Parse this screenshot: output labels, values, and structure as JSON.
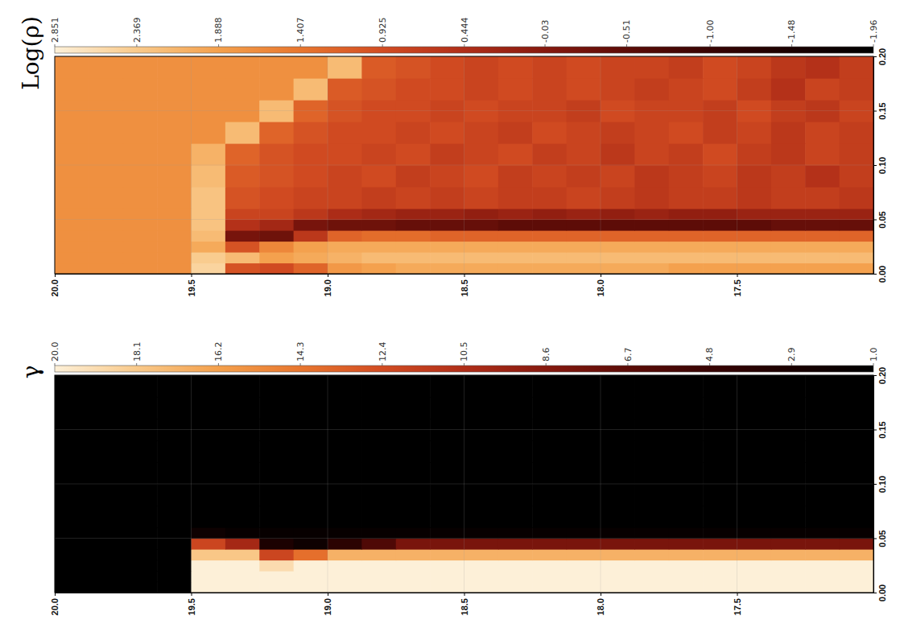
{
  "chart_data": [
    {
      "type": "heatmap",
      "title": "Log(ρ)",
      "x_edges": [
        20.0,
        19.875,
        19.75,
        19.625,
        19.5,
        19.375,
        19.25,
        19.125,
        19.0,
        18.875,
        18.75,
        18.625,
        18.5,
        18.375,
        18.25,
        18.125,
        18.0,
        17.875,
        17.75,
        17.625,
        17.5,
        17.375,
        17.25,
        17.125,
        17.0
      ],
      "y_edges": [
        0,
        0.01,
        0.02,
        0.03,
        0.04,
        0.05,
        0.06,
        0.08,
        0.1,
        0.12,
        0.14,
        0.16,
        0.18,
        0.2
      ],
      "values": [
        [
          1.7,
          1.7,
          1.7,
          1.7,
          2.5,
          1.0,
          0.9,
          1.2,
          1.8,
          1.9,
          2.0,
          2.0,
          2.0,
          2.0,
          2.0,
          2.0,
          2.0,
          2.0,
          1.9,
          1.9,
          1.9,
          1.9,
          1.9,
          1.9
        ],
        [
          1.7,
          1.7,
          1.7,
          1.7,
          2.4,
          2.2,
          1.9,
          2.0,
          2.1,
          2.2,
          2.2,
          2.2,
          2.2,
          2.2,
          2.2,
          2.2,
          2.2,
          2.2,
          2.2,
          2.2,
          2.2,
          2.2,
          2.2,
          2.2
        ],
        [
          1.7,
          1.7,
          1.7,
          1.7,
          2.0,
          1.0,
          1.6,
          1.9,
          2.0,
          2.0,
          2.0,
          2.0,
          2.0,
          2.0,
          2.0,
          2.0,
          2.0,
          2.0,
          2.0,
          2.0,
          2.0,
          2.0,
          2.0,
          2.0
        ],
        [
          1.7,
          1.7,
          1.7,
          1.7,
          2.2,
          -0.2,
          -0.3,
          0.6,
          1.2,
          1.3,
          1.3,
          1.2,
          1.2,
          1.2,
          1.2,
          1.2,
          1.2,
          1.2,
          1.2,
          1.2,
          1.2,
          1.2,
          1.2,
          1.2
        ],
        [
          1.7,
          1.7,
          1.7,
          1.7,
          2.3,
          0.5,
          0.3,
          -0.2,
          -0.3,
          -0.3,
          -0.4,
          -0.4,
          -0.4,
          -0.5,
          -0.5,
          -0.5,
          -0.5,
          -0.5,
          -0.5,
          -0.5,
          -0.5,
          -0.4,
          -0.4,
          -0.4
        ],
        [
          1.7,
          1.7,
          1.7,
          1.7,
          2.3,
          0.8,
          0.8,
          0.6,
          0.4,
          0.3,
          0.2,
          0.2,
          0.1,
          0.2,
          0.1,
          0.2,
          0.1,
          0.2,
          0.1,
          0.1,
          0.2,
          0.2,
          0.2,
          0.2
        ],
        [
          1.7,
          1.7,
          1.7,
          1.7,
          2.3,
          1.0,
          0.9,
          0.8,
          0.8,
          0.7,
          0.8,
          0.7,
          0.8,
          0.7,
          0.7,
          0.8,
          0.7,
          0.6,
          0.7,
          0.7,
          0.6,
          0.7,
          0.7,
          0.6
        ],
        [
          1.7,
          1.7,
          1.7,
          1.7,
          2.2,
          1.1,
          1.0,
          0.9,
          0.8,
          0.9,
          0.7,
          0.8,
          0.9,
          0.7,
          0.8,
          0.7,
          0.8,
          0.6,
          0.7,
          0.8,
          0.6,
          0.7,
          0.5,
          0.7
        ],
        [
          1.7,
          1.7,
          1.7,
          1.7,
          2.1,
          1.2,
          1.0,
          0.9,
          0.9,
          0.8,
          0.9,
          0.7,
          0.8,
          0.9,
          0.7,
          0.8,
          0.6,
          0.8,
          0.7,
          0.9,
          0.7,
          0.6,
          0.8,
          0.7
        ],
        [
          1.7,
          1.7,
          1.7,
          1.7,
          1.7,
          2.2,
          1.2,
          1.0,
          0.9,
          0.9,
          0.8,
          0.9,
          0.8,
          0.7,
          0.9,
          0.8,
          0.7,
          0.8,
          0.9,
          0.7,
          0.8,
          0.6,
          0.8,
          0.7
        ],
        [
          1.7,
          1.7,
          1.7,
          1.7,
          1.7,
          1.7,
          2.2,
          1.2,
          1.0,
          0.9,
          0.9,
          0.8,
          0.9,
          0.8,
          0.8,
          0.7,
          0.9,
          0.8,
          0.8,
          0.7,
          0.9,
          0.7,
          0.6,
          0.8
        ],
        [
          1.7,
          1.7,
          1.7,
          1.7,
          1.7,
          1.7,
          1.7,
          2.2,
          1.1,
          1.0,
          0.9,
          0.9,
          0.8,
          0.9,
          0.8,
          0.9,
          0.8,
          0.7,
          0.8,
          0.9,
          0.7,
          0.5,
          0.8,
          0.7
        ],
        [
          1.7,
          1.7,
          1.7,
          1.7,
          1.7,
          1.7,
          1.7,
          1.7,
          2.2,
          1.1,
          1.0,
          0.9,
          0.8,
          0.9,
          0.8,
          0.9,
          0.8,
          0.8,
          0.7,
          0.9,
          0.8,
          0.6,
          0.5,
          0.7
        ]
      ],
      "xlim": [
        20.0,
        17.0
      ],
      "xticks": [
        {
          "value": 20,
          "label": "20.0"
        },
        19.5,
        {
          "value": 19,
          "label": "19.0"
        },
        18.5,
        {
          "value": 18,
          "label": "18.0"
        },
        17.5
      ],
      "ylim": [
        0,
        0.2
      ],
      "yticks": [
        {
          "value": 0,
          "label": "0.00"
        },
        0.05,
        {
          "value": 0.1,
          "label": "0.10"
        },
        0.15,
        {
          "value": 0.2,
          "label": "0.20"
        }
      ],
      "colorbar": {
        "range": [
          2.851,
          -1.96
        ],
        "ticks": [
          2.851,
          2.369,
          1.888,
          1.407,
          0.925,
          0.444,
          -0.03,
          -0.51,
          {
            "value": -1,
            "label": "-1.00"
          },
          -1.48,
          -1.96
        ]
      },
      "grid": true
    },
    {
      "type": "heatmap",
      "title": "γ",
      "x_edges": [
        20.0,
        19.875,
        19.75,
        19.625,
        19.5,
        19.375,
        19.25,
        19.125,
        19.0,
        18.875,
        18.75,
        18.625,
        18.5,
        18.375,
        18.25,
        18.125,
        18.0,
        17.875,
        17.75,
        17.625,
        17.5,
        17.375,
        17.25,
        17.125,
        17.0
      ],
      "y_edges": [
        0,
        0.01,
        0.02,
        0.03,
        0.04,
        0.05,
        0.06,
        0.08,
        0.1,
        0.12,
        0.14,
        0.16,
        0.18,
        0.2
      ],
      "values": [
        [
          1,
          1,
          1,
          1,
          20,
          20,
          20,
          20,
          20,
          20,
          20,
          20,
          20,
          20,
          20,
          20,
          20,
          20,
          20,
          20,
          20,
          20,
          20,
          20
        ],
        [
          1,
          1,
          1,
          1,
          20,
          20,
          20,
          20,
          20,
          20,
          20,
          20,
          20,
          20,
          20,
          20,
          20,
          20,
          20,
          20,
          20,
          20,
          20,
          20
        ],
        [
          1,
          1,
          1,
          1,
          20,
          20,
          19,
          20,
          20,
          20,
          20,
          20,
          20,
          20,
          20,
          20,
          20,
          20,
          20,
          20,
          20,
          20,
          20,
          20
        ],
        [
          1,
          1,
          1,
          1,
          18,
          18,
          12,
          14,
          17,
          17,
          17,
          17,
          17,
          17,
          17,
          17,
          17,
          17,
          17,
          17,
          17,
          17,
          17,
          17
        ],
        [
          1,
          1,
          1,
          1,
          12,
          10,
          3,
          2,
          4,
          6,
          8,
          8,
          8,
          8,
          8,
          8,
          8,
          8,
          8,
          8,
          8,
          8,
          8,
          8
        ],
        [
          1,
          1,
          1,
          1,
          2,
          1.5,
          1.5,
          1.5,
          1.5,
          1.5,
          1.5,
          1.5,
          1.5,
          1.5,
          1.5,
          1.5,
          1.5,
          1.5,
          1.5,
          1.5,
          1.5,
          1.5,
          1.5,
          1.5
        ],
        [
          1,
          1,
          1,
          1,
          1,
          1,
          1,
          1,
          1,
          1,
          1,
          1,
          1,
          1,
          1,
          1,
          1,
          1,
          1,
          1,
          1,
          1,
          1,
          1
        ],
        [
          1,
          1,
          1,
          1,
          1,
          1,
          1,
          1,
          1,
          1,
          1,
          1,
          1,
          1,
          1,
          1,
          1,
          1,
          1,
          1,
          1,
          1,
          1,
          1
        ],
        [
          1,
          1,
          1,
          1,
          1,
          1,
          1,
          1,
          1,
          1,
          1,
          1,
          1,
          1,
          1,
          1,
          1,
          1,
          1,
          1,
          1,
          1,
          1,
          1
        ],
        [
          1,
          1,
          1,
          1,
          1,
          1,
          1,
          1,
          1,
          1,
          1,
          1,
          1,
          1,
          1,
          1,
          1,
          1,
          1,
          1,
          1,
          1,
          1,
          1
        ],
        [
          1,
          1,
          1,
          1,
          1,
          1,
          1,
          1,
          1,
          1,
          1,
          1,
          1,
          1,
          1,
          1,
          1,
          1,
          1,
          1,
          1,
          1,
          1,
          1
        ],
        [
          1,
          1,
          1,
          1,
          1,
          1,
          1,
          1,
          1,
          1,
          1,
          1,
          1,
          1,
          1,
          1,
          1,
          1,
          1,
          1,
          1,
          1,
          1,
          1
        ],
        [
          1,
          1,
          1,
          1,
          1,
          1,
          1,
          1,
          1,
          1,
          1,
          1,
          1,
          1,
          1,
          1,
          1,
          1,
          1,
          1,
          1,
          1,
          1,
          1
        ]
      ],
      "xlim": [
        20.0,
        17.0
      ],
      "xticks": [
        {
          "value": 20,
          "label": "20.0"
        },
        19.5,
        {
          "value": 19,
          "label": "19.0"
        },
        18.5,
        {
          "value": 18,
          "label": "18.0"
        },
        17.5
      ],
      "ylim": [
        0,
        0.2
      ],
      "yticks": [
        {
          "value": 0,
          "label": "0.00"
        },
        0.05,
        {
          "value": 0.1,
          "label": "0.10"
        },
        0.15,
        {
          "value": 0.2,
          "label": "0.20"
        }
      ],
      "colorbar": {
        "range": [
          20,
          1
        ],
        "ticks": [
          {
            "value": 20,
            "label": "20.0"
          },
          18.1,
          16.2,
          14.3,
          12.4,
          10.5,
          8.6,
          6.7,
          4.8,
          2.9,
          {
            "value": 1,
            "label": "1.0"
          }
        ]
      },
      "grid": true
    }
  ]
}
